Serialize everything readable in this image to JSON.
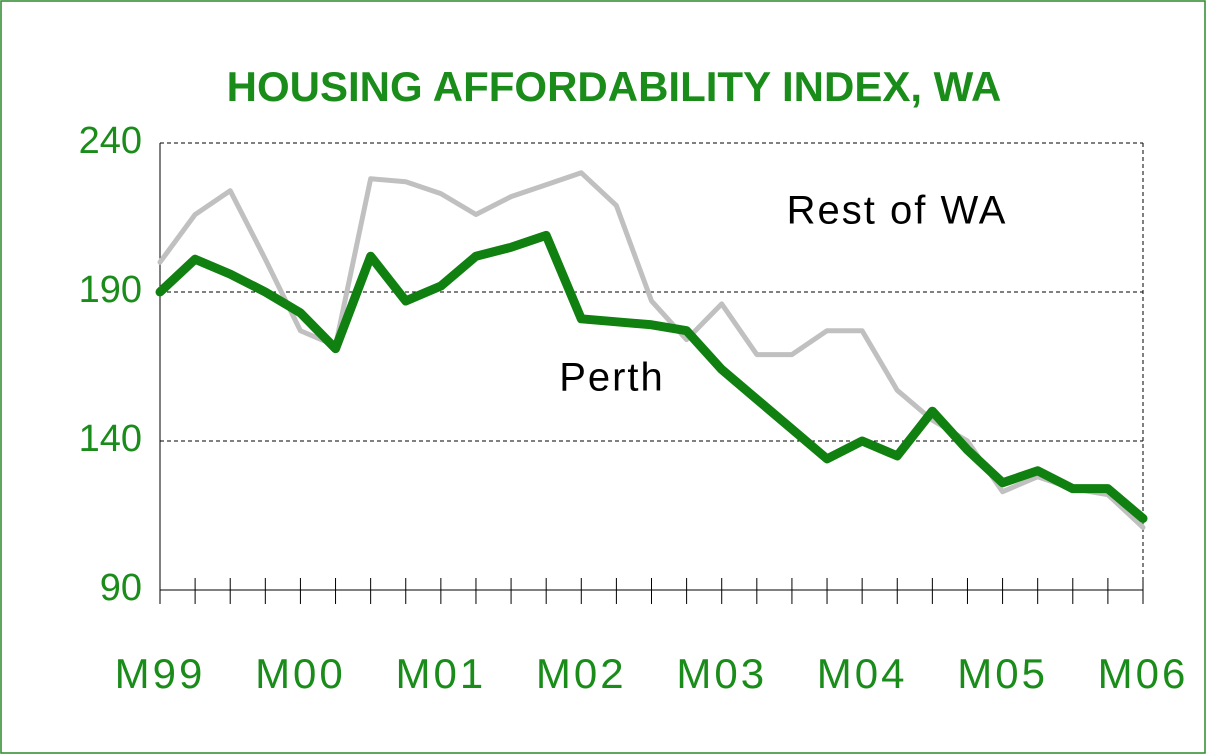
{
  "chart_data": {
    "type": "line",
    "title": "HOUSING AFFORDABILITY INDEX, WA",
    "categories": [
      "M99",
      null,
      null,
      null,
      "M00",
      null,
      null,
      null,
      "M01",
      null,
      null,
      null,
      "M02",
      null,
      null,
      null,
      "M03",
      null,
      null,
      null,
      "M04",
      null,
      null,
      null,
      "M05",
      null,
      null,
      null,
      "M06"
    ],
    "series": [
      {
        "name": "Rest of WA",
        "color": "#c0c0c0",
        "values": [
          200,
          216,
          224,
          201,
          177,
          172,
          228,
          227,
          223,
          216,
          222,
          226,
          230,
          219,
          187,
          174,
          186,
          169,
          169,
          177,
          177,
          157,
          147,
          140,
          123,
          128,
          124,
          122,
          111
        ]
      },
      {
        "name": "Perth",
        "color": "#108010",
        "values": [
          190,
          201,
          196,
          190,
          183,
          171,
          202,
          187,
          192,
          202,
          205,
          209,
          181,
          180,
          179,
          177,
          164,
          154,
          144,
          134,
          140,
          135,
          150,
          137,
          126,
          130,
          124,
          124,
          114
        ]
      }
    ],
    "ylim": [
      90,
      240
    ],
    "yticks": [
      90,
      140,
      190,
      240
    ],
    "grid": true
  }
}
